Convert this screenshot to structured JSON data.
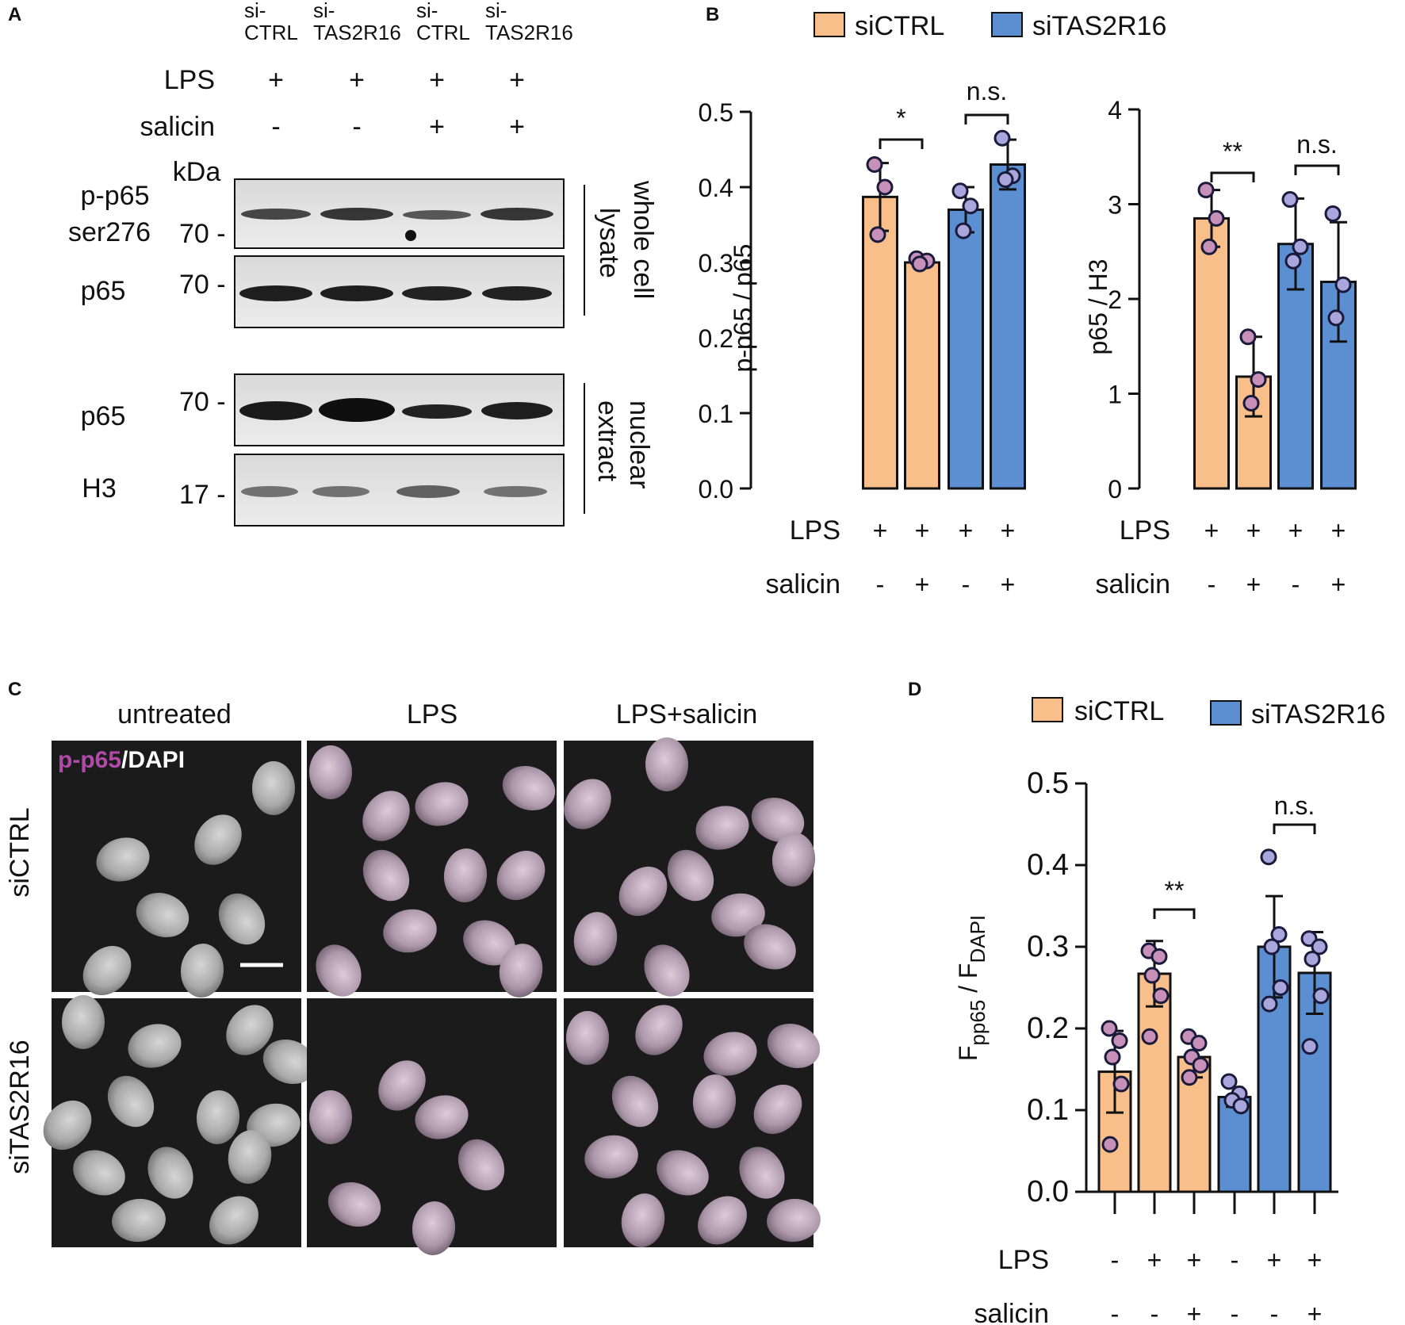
{
  "panel_labels": {
    "a": "A",
    "b": "B",
    "c": "C",
    "d": "D"
  },
  "panel_a": {
    "lanes": [
      {
        "line1": "si-",
        "line2": "CTRL"
      },
      {
        "line1": "si-",
        "line2": "TAS2R16"
      },
      {
        "line1": "si-",
        "line2": "CTRL"
      },
      {
        "line1": "si-",
        "line2": "TAS2R16"
      }
    ],
    "treatments": [
      {
        "label": "LPS",
        "signs": [
          "+",
          "+",
          "+",
          "+"
        ]
      },
      {
        "label": "salicin",
        "signs": [
          "-",
          "-",
          "+",
          "+"
        ]
      }
    ],
    "kda_label": "kDa",
    "blots": [
      {
        "label1": "p-p65",
        "label2": "ser276",
        "marker": "70 -"
      },
      {
        "label1": "p65",
        "label2": "",
        "marker": "70 -"
      },
      {
        "label1": "p65",
        "label2": "",
        "marker": "70 -"
      },
      {
        "label1": "H3",
        "label2": "",
        "marker": "17 -"
      }
    ],
    "fractions": [
      {
        "line1": "whole cell",
        "line2": "lysate"
      },
      {
        "line1": "nuclear",
        "line2": "extract"
      }
    ]
  },
  "legend": {
    "items": [
      {
        "label": "siCTRL",
        "color": "#f8bf8a"
      },
      {
        "label": "siTAS2R16",
        "color": "#5b8fd1"
      }
    ]
  },
  "chart_data": [
    {
      "id": "B_left",
      "type": "bar",
      "ylabel": "p-p65 / p65",
      "ylim": [
        0,
        0.5
      ],
      "yticks": [
        "0.0",
        "0.1",
        "0.2",
        "0.3",
        "0.4",
        "0.5"
      ],
      "ytick_values": [
        0,
        0.1,
        0.2,
        0.3,
        0.4,
        0.5
      ],
      "bars": [
        {
          "group": "siCTRL",
          "value": 0.387,
          "error": 0.045,
          "points": [
            0.43,
            0.4,
            0.337
          ]
        },
        {
          "group": "siCTRL",
          "value": 0.3,
          "error": 0.004,
          "points": [
            0.305,
            0.302,
            0.298
          ]
        },
        {
          "group": "siTAS2R16",
          "value": 0.37,
          "error": 0.03,
          "points": [
            0.395,
            0.375,
            0.342
          ]
        },
        {
          "group": "siTAS2R16",
          "value": 0.43,
          "error": 0.033,
          "points": [
            0.465,
            0.415,
            0.41
          ]
        }
      ],
      "x_rows": [
        {
          "label": "LPS",
          "signs": [
            "+",
            "+",
            "+",
            "+"
          ]
        },
        {
          "label": "salicin",
          "signs": [
            "-",
            "+",
            "-",
            "+"
          ]
        }
      ],
      "significance": [
        {
          "bars": [
            0,
            1
          ],
          "text": "*"
        },
        {
          "bars": [
            2,
            3
          ],
          "text": "n.s."
        }
      ]
    },
    {
      "id": "B_right",
      "type": "bar",
      "ylabel": "p65 / H3",
      "ylim": [
        0,
        4
      ],
      "yticks": [
        "0",
        "1",
        "2",
        "3",
        "4"
      ],
      "ytick_values": [
        0,
        1,
        2,
        3,
        4
      ],
      "bars": [
        {
          "group": "siCTRL",
          "value": 2.85,
          "error": 0.3,
          "points": [
            3.15,
            2.85,
            2.55
          ]
        },
        {
          "group": "siCTRL",
          "value": 1.18,
          "error": 0.42,
          "points": [
            1.6,
            1.15,
            0.9
          ]
        },
        {
          "group": "siTAS2R16",
          "value": 2.58,
          "error": 0.48,
          "points": [
            3.05,
            2.55,
            2.4
          ]
        },
        {
          "group": "siTAS2R16",
          "value": 2.18,
          "error": 0.63,
          "points": [
            2.9,
            2.15,
            1.8
          ]
        }
      ],
      "x_rows": [
        {
          "label": "LPS",
          "signs": [
            "+",
            "+",
            "+",
            "+"
          ]
        },
        {
          "label": "salicin",
          "signs": [
            "-",
            "+",
            "-",
            "+"
          ]
        }
      ],
      "significance": [
        {
          "bars": [
            0,
            1
          ],
          "text": "**"
        },
        {
          "bars": [
            2,
            3
          ],
          "text": "n.s."
        }
      ]
    },
    {
      "id": "D",
      "type": "bar",
      "ylabel_main": "F",
      "ylabel_sub1": "pp65",
      "ylabel_slash": " / F",
      "ylabel_sub2": "DAPI",
      "ylim": [
        0,
        0.5
      ],
      "yticks": [
        "0.0",
        "0.1",
        "0.2",
        "0.3",
        "0.4",
        "0.5"
      ],
      "ytick_values": [
        0,
        0.1,
        0.2,
        0.3,
        0.4,
        0.5
      ],
      "bars": [
        {
          "group": "siCTRL",
          "value": 0.147,
          "error": 0.05,
          "points": [
            0.2,
            0.185,
            0.165,
            0.132,
            0.058
          ]
        },
        {
          "group": "siCTRL",
          "value": 0.267,
          "error": 0.04,
          "points": [
            0.295,
            0.288,
            0.265,
            0.24,
            0.19
          ]
        },
        {
          "group": "siCTRL",
          "value": 0.165,
          "error": 0.025,
          "points": [
            0.19,
            0.182,
            0.165,
            0.155,
            0.14
          ]
        },
        {
          "group": "siTAS2R16",
          "value": 0.116,
          "error": 0.012,
          "points": [
            0.135,
            0.12,
            0.112,
            0.105
          ]
        },
        {
          "group": "siTAS2R16",
          "value": 0.3,
          "error": 0.062,
          "points": [
            0.41,
            0.315,
            0.3,
            0.25,
            0.23
          ]
        },
        {
          "group": "siTAS2R16",
          "value": 0.268,
          "error": 0.05,
          "points": [
            0.31,
            0.3,
            0.285,
            0.24,
            0.178
          ]
        }
      ],
      "x_rows": [
        {
          "label": "LPS",
          "signs": [
            "-",
            "+",
            "+",
            "-",
            "+",
            "+"
          ]
        },
        {
          "label": "salicin",
          "signs": [
            "-",
            "-",
            "+",
            "-",
            "-",
            "+"
          ]
        }
      ],
      "significance": [
        {
          "bars": [
            1,
            2
          ],
          "text": "**"
        },
        {
          "bars": [
            4,
            5
          ],
          "text": "n.s."
        }
      ]
    }
  ],
  "panel_c": {
    "columns": [
      "untreated",
      "LPS",
      "LPS+salicin"
    ],
    "rows": [
      "siCTRL",
      "siTAS2R16"
    ],
    "stain_label_a": "p-p65",
    "stain_label_b": "/DAPI",
    "stain_color": "#b04aa8"
  }
}
